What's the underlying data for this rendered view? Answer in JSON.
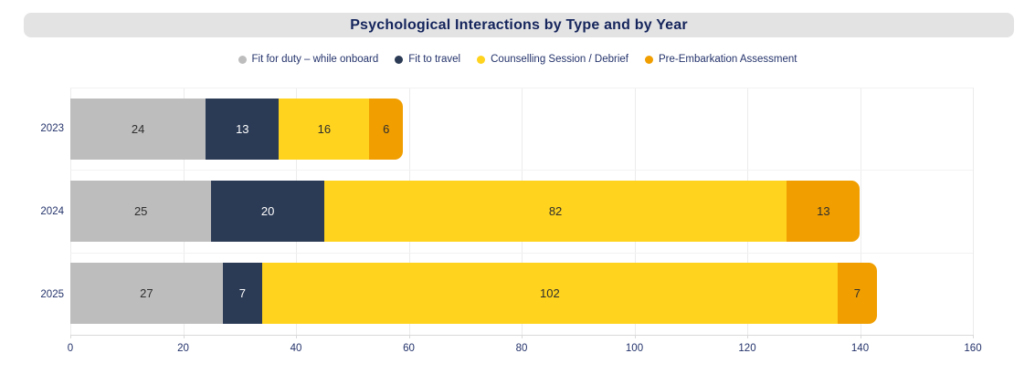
{
  "header": {
    "title": "Psychological Interactions by Type and by Year"
  },
  "chart_data": {
    "type": "bar",
    "orientation": "horizontal",
    "stacked": true,
    "title": "Psychological Interactions by Type and by Year",
    "categories": [
      "2023",
      "2024",
      "2025"
    ],
    "series": [
      {
        "name": "Fit for duty – while onboard",
        "color": "#bdbdbd",
        "label_color": "#2e2e2e",
        "values": [
          24,
          25,
          27
        ]
      },
      {
        "name": "Fit to travel",
        "color": "#2b3a55",
        "label_color": "#ffffff",
        "values": [
          13,
          20,
          7
        ]
      },
      {
        "name": "Counselling Session / Debrief",
        "color": "#ffd31e",
        "label_color": "#2e2e2e",
        "values": [
          16,
          82,
          102
        ]
      },
      {
        "name": "Pre-Embarkation Assessment",
        "color": "#f09e00",
        "label_color": "#2e2e2e",
        "values": [
          6,
          13,
          7
        ]
      }
    ],
    "totals": [
      59,
      140,
      143
    ],
    "xlim": [
      0,
      160
    ],
    "x_ticks": [
      0,
      20,
      40,
      60,
      80,
      100,
      120,
      140,
      160
    ],
    "grid": true,
    "legend_position": "top",
    "data_labels": true
  },
  "colors": {
    "background": "#ffffff",
    "header_bg": "#e3e3e3",
    "title_text": "#15255c",
    "axis_text": "#24336b",
    "gridline": "#ececec",
    "axis_line": "#d9d9d9"
  }
}
